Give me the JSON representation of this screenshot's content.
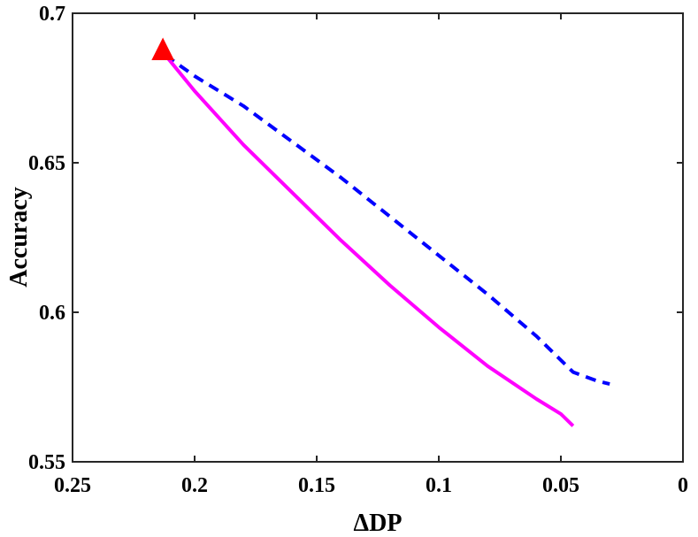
{
  "chart_data": {
    "type": "line",
    "xlabel": "ΔDP",
    "ylabel": "Accuracy",
    "xlim": [
      0.25,
      0
    ],
    "x_reversed": true,
    "ylim": [
      0.55,
      0.7
    ],
    "xticks": [
      "0.25",
      "0.2",
      "0.15",
      "0.1",
      "0.05",
      "0"
    ],
    "xtick_values": [
      0.25,
      0.2,
      0.15,
      0.1,
      0.05,
      0
    ],
    "yticks": [
      "0.55",
      "0.6",
      "0.65",
      "0.7"
    ],
    "ytick_values": [
      0.55,
      0.6,
      0.65,
      0.7
    ],
    "grid": false,
    "series": [
      {
        "style": "dashed",
        "color": "#0000ff",
        "x": [
          0.212,
          0.2,
          0.18,
          0.16,
          0.14,
          0.12,
          0.1,
          0.08,
          0.06,
          0.045,
          0.035,
          0.03
        ],
        "y": [
          0.686,
          0.679,
          0.669,
          0.657,
          0.645,
          0.632,
          0.619,
          0.606,
          0.592,
          0.58,
          0.577,
          0.576
        ]
      },
      {
        "style": "solid",
        "color": "#ff00ff",
        "x": [
          0.212,
          0.2,
          0.18,
          0.16,
          0.14,
          0.12,
          0.1,
          0.08,
          0.06,
          0.05,
          0.045
        ],
        "y": [
          0.686,
          0.674,
          0.656,
          0.64,
          0.624,
          0.609,
          0.595,
          0.582,
          0.571,
          0.566,
          0.562
        ]
      }
    ],
    "markers": [
      {
        "shape": "triangle",
        "color": "#ff0000",
        "x": 0.213,
        "y": 0.688
      }
    ]
  }
}
